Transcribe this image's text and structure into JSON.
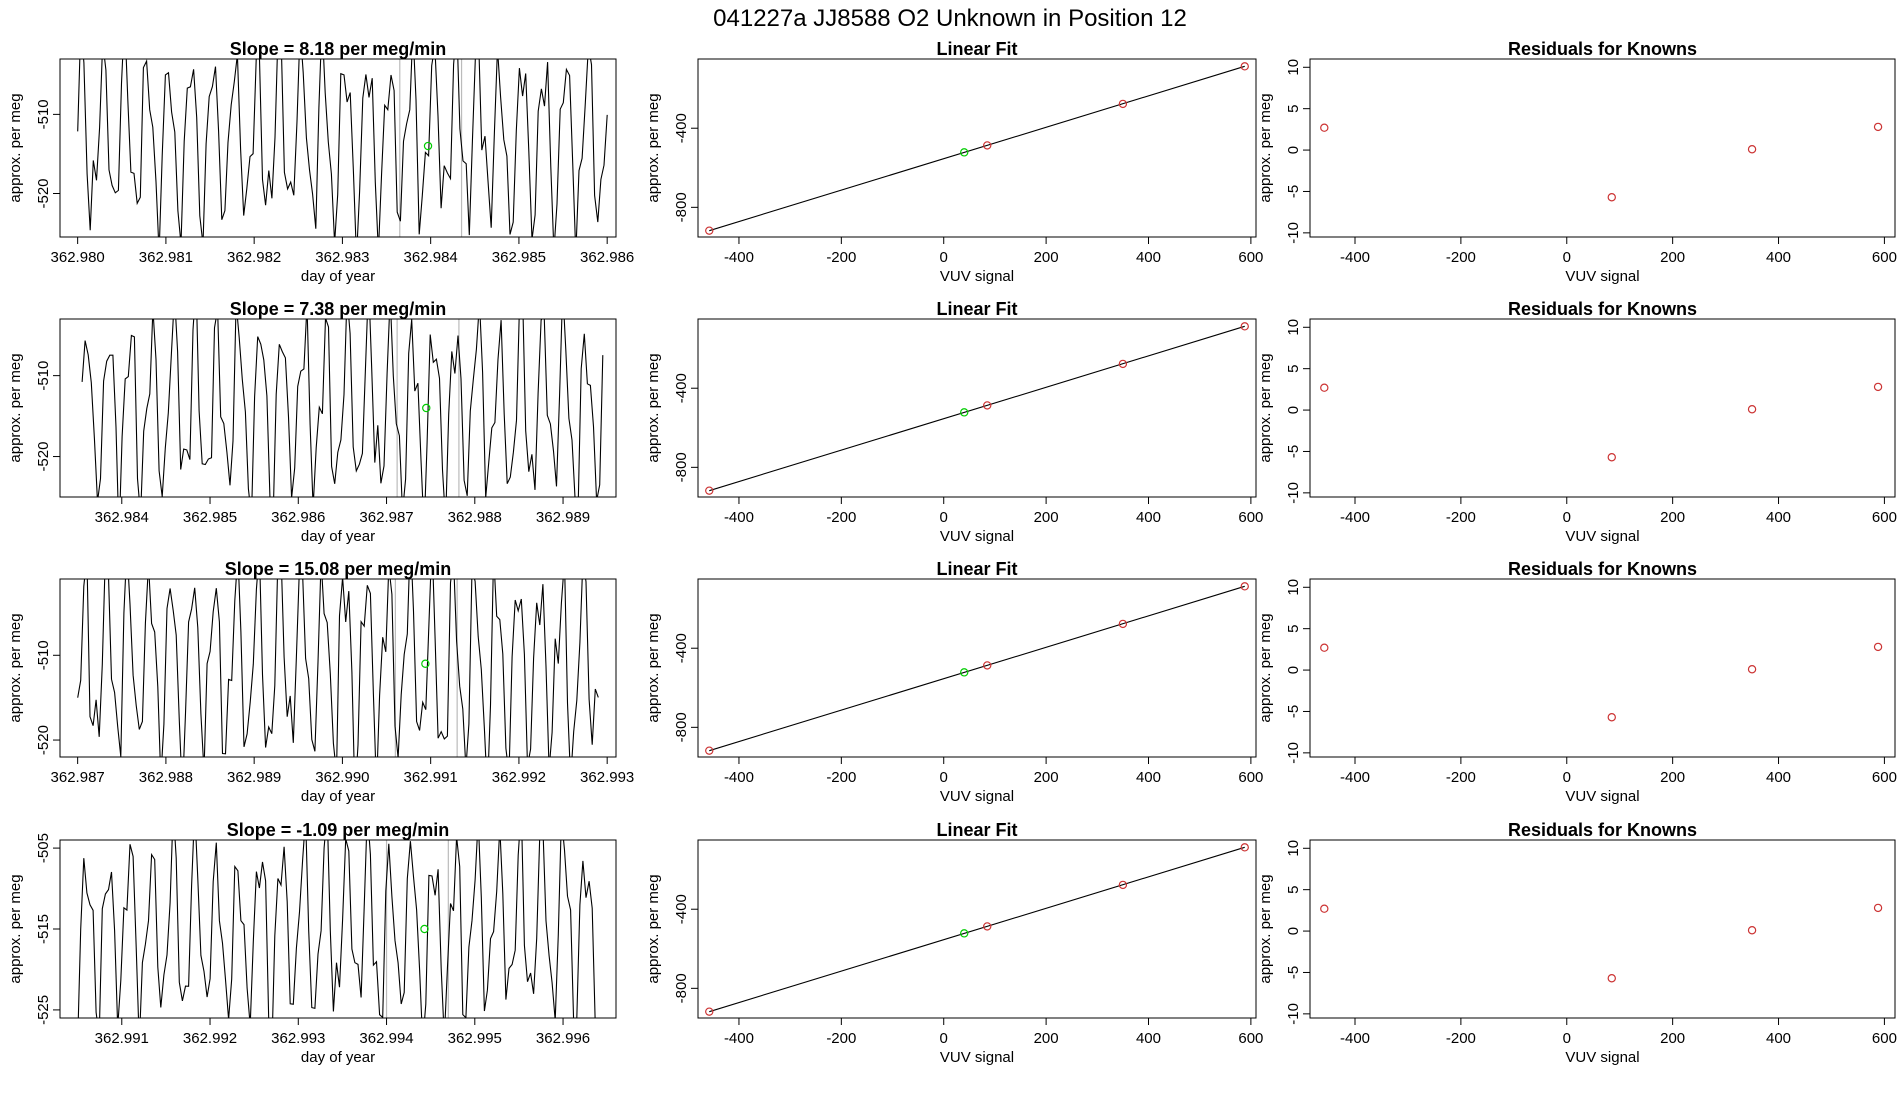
{
  "page_title": "041227a      JJ8588    O2 Unknown in Position  12",
  "colors": {
    "line": "#000000",
    "frame": "#000000",
    "current": "#00cc00",
    "known": "#cc3333",
    "bracket": "#bbbbbb"
  },
  "chart_data": [
    {
      "type": "line",
      "title": "Slope =  8.18  per meg/min",
      "xlabel": "day of year",
      "ylabel": "approx. per meg",
      "xlim": [
        362.9798,
        362.9861
      ],
      "ylim": [
        -525.5,
        -503
      ],
      "xticks": [
        "362.980",
        "362.981",
        "362.982",
        "362.983",
        "362.984",
        "362.985",
        "362.986"
      ],
      "xtick_values": [
        362.98,
        362.981,
        362.982,
        362.983,
        362.984,
        362.985,
        362.986
      ],
      "yticks": [
        "-510",
        "-520"
      ],
      "ytick_values": [
        -510,
        -520
      ],
      "x_start": 362.98,
      "x_end": 362.986,
      "y_center": -513,
      "y_amplitude": 10,
      "cycles": 24,
      "seed": 7,
      "bracket_x": [
        362.98365,
        362.98435
      ],
      "current_point": {
        "x": 362.98397,
        "y": -514
      }
    },
    {
      "type": "scatter",
      "title": "Linear Fit",
      "xlabel": "VUV signal",
      "ylabel": "approx. per meg",
      "xlim": [
        -480,
        610
      ],
      "ylim": [
        -950,
        -50
      ],
      "xticks": [
        "-400",
        "-200",
        "0",
        "200",
        "400",
        "600"
      ],
      "xtick_values": [
        -400,
        -200,
        0,
        200,
        400,
        600
      ],
      "yticks": [
        "-400",
        "-800"
      ],
      "ytick_values": [
        -400,
        -800
      ],
      "fit_line": {
        "x": [
          -458,
          588
        ],
        "y": [
          -918,
          -87
        ]
      },
      "knowns": {
        "x": [
          -458,
          85,
          350,
          588
        ],
        "y": [
          -918,
          -487,
          -277,
          -87
        ]
      },
      "current_point": {
        "x": 40,
        "y": -522
      }
    },
    {
      "type": "scatter",
      "title": "Residuals for Knowns",
      "xlabel": "VUV signal",
      "ylabel": "approx. per meg",
      "xlim": [
        -485,
        620
      ],
      "ylim": [
        -10.5,
        11
      ],
      "xticks": [
        "-400",
        "-200",
        "0",
        "200",
        "400",
        "600"
      ],
      "xtick_values": [
        -400,
        -200,
        0,
        200,
        400,
        600
      ],
      "yticks": [
        "10",
        "5",
        "0",
        "-5",
        "-10"
      ],
      "ytick_values": [
        10,
        5,
        0,
        -5,
        -10
      ],
      "points": {
        "x": [
          -458,
          85,
          350,
          588
        ],
        "y": [
          2.7,
          -5.7,
          0.1,
          2.8
        ]
      }
    },
    {
      "type": "line",
      "title": "Slope =  7.38  per meg/min",
      "xlabel": "day of year",
      "ylabel": "approx. per meg",
      "xlim": [
        362.9833,
        362.9896
      ],
      "ylim": [
        -525,
        -503
      ],
      "xticks": [
        "362.984",
        "362.985",
        "362.986",
        "362.987",
        "362.988",
        "362.989"
      ],
      "xtick_values": [
        362.984,
        362.985,
        362.986,
        362.987,
        362.988,
        362.989
      ],
      "yticks": [
        "-510",
        "-520"
      ],
      "ytick_values": [
        -510,
        -520
      ],
      "x_start": 362.98355,
      "x_end": 362.98945,
      "y_center": -514,
      "y_amplitude": 10,
      "cycles": 24,
      "seed": 19,
      "bracket_x": [
        362.98712,
        362.98782
      ],
      "current_point": {
        "x": 362.98745,
        "y": -514
      }
    },
    {
      "type": "scatter",
      "title": "Linear Fit",
      "xlabel": "VUV signal",
      "ylabel": "approx. per meg",
      "xlim": [
        -480,
        610
      ],
      "ylim": [
        -950,
        -50
      ],
      "xticks": [
        "-400",
        "-200",
        "0",
        "200",
        "400",
        "600"
      ],
      "xtick_values": [
        -400,
        -200,
        0,
        200,
        400,
        600
      ],
      "yticks": [
        "-400",
        "-800"
      ],
      "ytick_values": [
        -400,
        -800
      ],
      "fit_line": {
        "x": [
          -458,
          588
        ],
        "y": [
          -918,
          -87
        ]
      },
      "knowns": {
        "x": [
          -458,
          85,
          350,
          588
        ],
        "y": [
          -918,
          -487,
          -277,
          -87
        ]
      },
      "current_point": {
        "x": 40,
        "y": -522
      }
    },
    {
      "type": "scatter",
      "title": "Residuals for Knowns",
      "xlabel": "VUV signal",
      "ylabel": "approx. per meg",
      "xlim": [
        -485,
        620
      ],
      "ylim": [
        -10.5,
        11
      ],
      "xticks": [
        "-400",
        "-200",
        "0",
        "200",
        "400",
        "600"
      ],
      "xtick_values": [
        -400,
        -200,
        0,
        200,
        400,
        600
      ],
      "yticks": [
        "10",
        "5",
        "0",
        "-5",
        "-10"
      ],
      "ytick_values": [
        10,
        5,
        0,
        -5,
        -10
      ],
      "points": {
        "x": [
          -458,
          85,
          350,
          588
        ],
        "y": [
          2.7,
          -5.7,
          0.1,
          2.8
        ]
      }
    },
    {
      "type": "line",
      "title": "Slope =  15.08  per meg/min",
      "xlabel": "day of year",
      "ylabel": "approx. per meg",
      "xlim": [
        362.9868,
        362.9931
      ],
      "ylim": [
        -522,
        -501
      ],
      "xticks": [
        "362.987",
        "362.988",
        "362.989",
        "362.990",
        "362.991",
        "362.992",
        "362.993"
      ],
      "xtick_values": [
        362.987,
        362.988,
        362.989,
        362.99,
        362.991,
        362.992,
        362.993
      ],
      "yticks": [
        "-510",
        "-520"
      ],
      "ytick_values": [
        -510,
        -520
      ],
      "x_start": 362.987,
      "x_end": 362.9929,
      "y_center": -511,
      "y_amplitude": 10,
      "cycles": 24,
      "seed": 31,
      "bracket_x": [
        362.9906,
        362.9913
      ],
      "current_point": {
        "x": 362.99094,
        "y": -511
      }
    },
    {
      "type": "scatter",
      "title": "Linear Fit",
      "xlabel": "VUV signal",
      "ylabel": "approx. per meg",
      "xlim": [
        -480,
        610
      ],
      "ylim": [
        -950,
        -50
      ],
      "xticks": [
        "-400",
        "-200",
        "0",
        "200",
        "400",
        "600"
      ],
      "xtick_values": [
        -400,
        -200,
        0,
        200,
        400,
        600
      ],
      "yticks": [
        "-400",
        "-800"
      ],
      "ytick_values": [
        -400,
        -800
      ],
      "fit_line": {
        "x": [
          -458,
          588
        ],
        "y": [
          -918,
          -87
        ]
      },
      "knowns": {
        "x": [
          -458,
          85,
          350,
          588
        ],
        "y": [
          -918,
          -487,
          -277,
          -87
        ]
      },
      "current_point": {
        "x": 40,
        "y": -522
      }
    },
    {
      "type": "scatter",
      "title": "Residuals for Knowns",
      "xlabel": "VUV signal",
      "ylabel": "approx. per meg",
      "xlim": [
        -485,
        620
      ],
      "ylim": [
        -10.5,
        11
      ],
      "xticks": [
        "-400",
        "-200",
        "0",
        "200",
        "400",
        "600"
      ],
      "xtick_values": [
        -400,
        -200,
        0,
        200,
        400,
        600
      ],
      "yticks": [
        "10",
        "5",
        "0",
        "-5",
        "-10"
      ],
      "ytick_values": [
        10,
        5,
        0,
        -5,
        -10
      ],
      "points": {
        "x": [
          -458,
          85,
          350,
          588
        ],
        "y": [
          2.7,
          -5.7,
          0.1,
          2.8
        ]
      }
    },
    {
      "type": "line",
      "title": "Slope =  -1.09  per meg/min",
      "xlabel": "day of year",
      "ylabel": "approx. per meg",
      "xlim": [
        362.9903,
        362.9966
      ],
      "ylim": [
        -526,
        -504
      ],
      "xticks": [
        "362.991",
        "362.992",
        "362.993",
        "362.994",
        "362.995",
        "362.996"
      ],
      "xtick_values": [
        362.991,
        362.992,
        362.993,
        362.994,
        362.995,
        362.996
      ],
      "yticks": [
        "-505",
        "-515",
        "-525"
      ],
      "ytick_values": [
        -505,
        -515,
        -525
      ],
      "x_start": 362.9905,
      "x_end": 362.9964,
      "y_center": -515,
      "y_amplitude": 10,
      "cycles": 24,
      "seed": 43,
      "bracket_x": [
        362.994,
        362.9947
      ],
      "current_point": {
        "x": 362.99443,
        "y": -515
      }
    },
    {
      "type": "scatter",
      "title": "Linear Fit",
      "xlabel": "VUV signal",
      "ylabel": "approx. per meg",
      "xlim": [
        -480,
        610
      ],
      "ylim": [
        -950,
        -50
      ],
      "xticks": [
        "-400",
        "-200",
        "0",
        "200",
        "400",
        "600"
      ],
      "xtick_values": [
        -400,
        -200,
        0,
        200,
        400,
        600
      ],
      "yticks": [
        "-400",
        "-800"
      ],
      "ytick_values": [
        -400,
        -800
      ],
      "fit_line": {
        "x": [
          -458,
          588
        ],
        "y": [
          -918,
          -87
        ]
      },
      "knowns": {
        "x": [
          -458,
          85,
          350,
          588
        ],
        "y": [
          -918,
          -487,
          -277,
          -87
        ]
      },
      "current_point": {
        "x": 40,
        "y": -522
      }
    },
    {
      "type": "scatter",
      "title": "Residuals for Knowns",
      "xlabel": "VUV signal",
      "ylabel": "approx. per meg",
      "xlim": [
        -485,
        620
      ],
      "ylim": [
        -10.5,
        11
      ],
      "xticks": [
        "-400",
        "-200",
        "0",
        "200",
        "400",
        "600"
      ],
      "xtick_values": [
        -400,
        -200,
        0,
        200,
        400,
        600
      ],
      "yticks": [
        "10",
        "5",
        "0",
        "-5",
        "-10"
      ],
      "ytick_values": [
        10,
        5,
        0,
        -5,
        -10
      ],
      "points": {
        "x": [
          -458,
          85,
          350,
          588
        ],
        "y": [
          2.7,
          -5.7,
          0.1,
          2.8
        ]
      }
    }
  ]
}
